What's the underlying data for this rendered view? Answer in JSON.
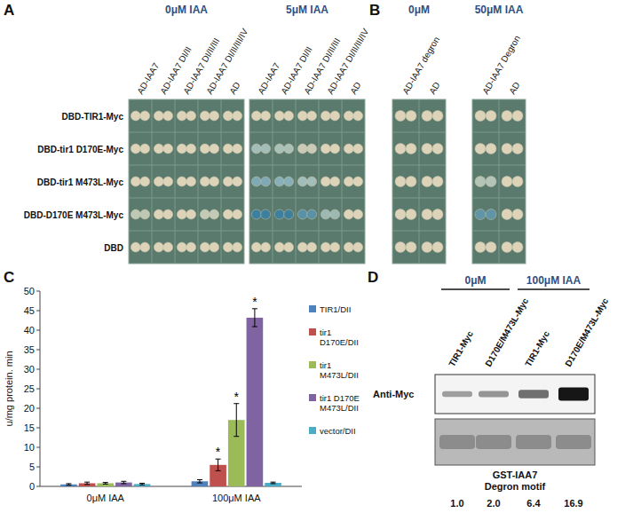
{
  "panel_labels": [
    "A",
    "B",
    "C",
    "D"
  ],
  "panels": {
    "A": {
      "rows": [
        "DBD-TIR1-Myc",
        "DBD-tir1 D170E-Myc",
        "DBD-tir1 M473L-Myc",
        "DBD-D170E M473L-Myc",
        "DBD"
      ],
      "conditions": [
        {
          "title": "0μM IAA",
          "columns": [
            "AD-IAA7",
            "AD-IAA7 DI/II",
            "AD-IAA7 DI/II/III",
            "AD-IAA7 DI/II/III/IV",
            "AD"
          ],
          "colors": [
            [
              "#dcd3b8",
              "#dcd3b8",
              "#dcd3b8",
              "#dcd3b8",
              "#dcd3b8"
            ],
            [
              "#dcd3b8",
              "#dcd3b8",
              "#dcd3b8",
              "#dcd3b8",
              "#dcd3b8"
            ],
            [
              "#dcd3b8",
              "#dcd3b8",
              "#dcd3b8",
              "#dcd3b8",
              "#dcd3b8"
            ],
            [
              "#bfc8b5",
              "#dcd3b8",
              "#dcd3b8",
              "#c3cab6",
              "#dcd3b8"
            ],
            [
              "#dcd3b8",
              "#dcd3b8",
              "#dcd3b8",
              "#dcd3b8",
              "#dcd3b8"
            ]
          ]
        },
        {
          "title": "5μM IAA",
          "columns": [
            "AD-IAA7",
            "AD-IAA7 DI/II",
            "AD-IAA7 DI/II/III",
            "AD-IAA7 DI/II/III/IV",
            "AD"
          ],
          "colors": [
            [
              "#dcd3b8",
              "#dcd3b8",
              "#dcd3b8",
              "#dcd3b8",
              "#dcd3b8"
            ],
            [
              "#a3bdb8",
              "#a9c1b9",
              "#c9cbb6",
              "#dcd3b8",
              "#dcd3b8"
            ],
            [
              "#7fa9b4",
              "#88b0b8",
              "#a3bdb8",
              "#dcd3b8",
              "#dcd3b8"
            ],
            [
              "#3d7f9e",
              "#3f7f9c",
              "#5a91a6",
              "#9cb9b4",
              "#dcd3b8"
            ],
            [
              "#dcd3b8",
              "#dcd3b8",
              "#dcd3b8",
              "#dcd3b8",
              "#dcd3b8"
            ]
          ]
        }
      ]
    },
    "B": {
      "conditions": [
        {
          "title": "0μM",
          "columns": [
            "AD-IAA7 degron",
            "AD"
          ],
          "colors": [
            [
              "#dcd3b8",
              "#dcd3b8"
            ],
            [
              "#dcd3b8",
              "#dcd3b8"
            ],
            [
              "#dcd3b8",
              "#dcd3b8"
            ],
            [
              "#dcd3b8",
              "#dcd3b8"
            ],
            [
              "#dcd3b8",
              "#dcd3b8"
            ]
          ]
        },
        {
          "title": "50μM IAA",
          "columns": [
            "AD-IAA7 Degron",
            "AD"
          ],
          "colors": [
            [
              "#dcd3b8",
              "#dcd3b8"
            ],
            [
              "#dcd3b8",
              "#dcd3b8"
            ],
            [
              "#b4c4b6",
              "#dcd3b8"
            ],
            [
              "#5f95a6",
              "#dcd3b8"
            ],
            [
              "#dcd3b8",
              "#dcd3b8"
            ]
          ]
        }
      ]
    },
    "D": {
      "groups": [
        {
          "title": "0μM",
          "lanes": [
            "TIR1-Myc",
            "D170E/M473L-Myc"
          ]
        },
        {
          "title": "100μM IAA",
          "lanes": [
            "TIR1-Myc",
            "D170E/M473L-Myc"
          ]
        }
      ],
      "blots": [
        "Anti-Myc",
        "GST-IAA7 Degron motif"
      ],
      "values": [
        1.0,
        2.0,
        6.4,
        16.9
      ],
      "value_labels": [
        "1.0",
        "2.0",
        "6.4",
        "16.9"
      ]
    }
  },
  "chart_data": {
    "type": "bar",
    "y_label": "u/mg protein. min",
    "categories": [
      "0μM IAA",
      "100μM IAA"
    ],
    "series": [
      {
        "name": "TIR1/DII",
        "color": "#4f81bd",
        "values": [
          0.5,
          1.3
        ],
        "errors": [
          0.2,
          0.4
        ]
      },
      {
        "name": "tir1 D170E/DII",
        "color": "#c0504d",
        "values": [
          0.8,
          5.5
        ],
        "errors": [
          0.3,
          1.5
        ]
      },
      {
        "name": "tir1 M473L/DII",
        "color": "#9bbb59",
        "values": [
          0.8,
          17.0
        ],
        "errors": [
          0.2,
          4.2
        ]
      },
      {
        "name": "tir1 D170E M473L/DII",
        "color": "#8064a2",
        "values": [
          1.0,
          43.2
        ],
        "errors": [
          0.3,
          2.3
        ]
      },
      {
        "name": "vector/DII",
        "color": "#4bacc6",
        "values": [
          0.6,
          0.9
        ],
        "errors": [
          0.2,
          0.2
        ]
      }
    ],
    "annotations": [
      {
        "text": "*",
        "series": 1,
        "category": 1
      },
      {
        "text": "*",
        "series": 2,
        "category": 1
      },
      {
        "text": "*",
        "series": 3,
        "category": 1
      }
    ],
    "ylim": [
      0,
      50
    ],
    "yticks": [
      0,
      5,
      10,
      15,
      20,
      25,
      30,
      35,
      40,
      45,
      50
    ],
    "grid": false,
    "legend": "right"
  }
}
